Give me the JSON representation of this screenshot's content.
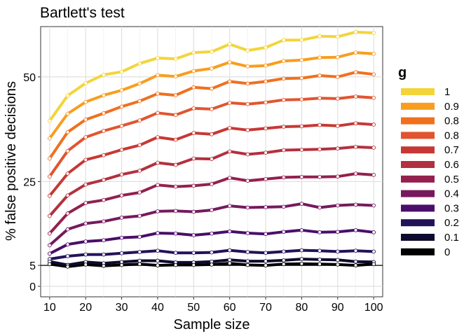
{
  "chart_data": {
    "type": "line",
    "title": "Bartlett's test",
    "xlabel": "Sample size",
    "ylabel": "% false positive decisions",
    "x": [
      10,
      15,
      20,
      25,
      30,
      35,
      40,
      45,
      50,
      55,
      60,
      65,
      70,
      75,
      80,
      85,
      90,
      95,
      100
    ],
    "xticks": [
      "10",
      "20",
      "30",
      "40",
      "50",
      "60",
      "70",
      "80",
      "90",
      "100"
    ],
    "xlim": [
      7.5,
      102.5
    ],
    "yticks": [
      "0",
      "5",
      "25",
      "50"
    ],
    "ylim": [
      -2.5,
      62
    ],
    "reference_line": 5,
    "grid": true,
    "legend": {
      "title": "g",
      "position": "right"
    },
    "series": [
      {
        "name": "1",
        "color": "#f3d53a",
        "values": [
          39.5,
          45.5,
          48.5,
          50.5,
          51.2,
          53.2,
          54.5,
          54.3,
          55.8,
          56.0,
          57.8,
          56.3,
          57.0,
          58.8,
          58.8,
          59.7,
          59.6,
          60.7,
          60.5
        ]
      },
      {
        "name": "0.9",
        "color": "#f99d1e",
        "values": [
          35.3,
          41.2,
          44.0,
          45.6,
          46.8,
          48.4,
          50.4,
          50.1,
          51.4,
          52.0,
          53.5,
          52.5,
          52.7,
          53.8,
          54.0,
          54.6,
          54.7,
          55.8,
          55.5
        ]
      },
      {
        "name": "0.8",
        "color": "#f0701e",
        "values": [
          30.5,
          36.8,
          39.8,
          41.3,
          42.9,
          44.2,
          46.0,
          45.6,
          47.5,
          47.2,
          48.9,
          48.4,
          48.9,
          49.6,
          49.7,
          50.3,
          50.0,
          51.1,
          50.6
        ]
      },
      {
        "name": "0.8",
        "color": "#e05530",
        "values": [
          26.2,
          32.3,
          35.6,
          37.1,
          38.3,
          39.6,
          41.4,
          40.9,
          42.5,
          42.3,
          43.8,
          43.5,
          43.9,
          44.5,
          44.6,
          44.9,
          44.8,
          45.3,
          45.0
        ]
      },
      {
        "name": "0.7",
        "color": "#c73834",
        "values": [
          21.6,
          26.9,
          30.2,
          31.3,
          32.6,
          33.7,
          35.6,
          35.0,
          36.6,
          36.3,
          37.8,
          37.3,
          37.7,
          38.1,
          38.2,
          38.5,
          38.3,
          38.9,
          38.6
        ]
      },
      {
        "name": "0.6",
        "color": "#b3303e",
        "values": [
          16.8,
          21.7,
          24.3,
          25.4,
          26.7,
          27.6,
          29.5,
          29.0,
          30.5,
          30.4,
          32.2,
          31.5,
          31.9,
          32.5,
          32.6,
          32.7,
          32.9,
          33.3,
          33.1
        ]
      },
      {
        "name": "0.5",
        "color": "#93204d",
        "values": [
          12.6,
          17.4,
          19.9,
          20.6,
          21.7,
          22.4,
          24.2,
          23.8,
          24.0,
          24.4,
          25.9,
          25.2,
          25.6,
          26.0,
          26.1,
          26.1,
          26.2,
          26.9,
          26.6
        ]
      },
      {
        "name": "0.4",
        "color": "#751a5e",
        "values": [
          9.8,
          13.6,
          15.0,
          15.5,
          16.4,
          16.8,
          17.9,
          18.0,
          17.8,
          18.2,
          19.2,
          18.8,
          18.9,
          19.0,
          19.7,
          18.8,
          19.3,
          19.5,
          19.3
        ]
      },
      {
        "name": "0.3",
        "color": "#4b0d6a",
        "values": [
          7.8,
          10.0,
          10.7,
          11.0,
          11.6,
          11.8,
          12.7,
          12.6,
          12.2,
          12.6,
          13.1,
          12.7,
          12.5,
          13.0,
          13.4,
          12.9,
          13.0,
          13.4,
          12.9
        ]
      },
      {
        "name": "0.2",
        "color": "#231258",
        "values": [
          6.5,
          7.2,
          7.6,
          7.6,
          7.9,
          8.2,
          8.5,
          8.0,
          8.0,
          8.1,
          8.6,
          8.2,
          8.0,
          8.3,
          8.6,
          8.5,
          8.3,
          8.5,
          8.3
        ]
      },
      {
        "name": "0.1",
        "color": "#0e0b2e",
        "values": [
          5.9,
          5.1,
          5.8,
          5.5,
          5.8,
          6.1,
          6.1,
          5.7,
          5.7,
          5.9,
          6.3,
          6.0,
          6.0,
          6.2,
          6.5,
          6.4,
          6.3,
          5.9,
          5.8
        ]
      },
      {
        "name": "0",
        "color": "#000000",
        "values": [
          5.3,
          4.7,
          5.2,
          4.9,
          5.1,
          5.3,
          5.0,
          5.1,
          5.1,
          5.2,
          5.5,
          5.1,
          5.0,
          5.3,
          5.4,
          5.3,
          5.2,
          5.0,
          5.3
        ]
      }
    ]
  }
}
